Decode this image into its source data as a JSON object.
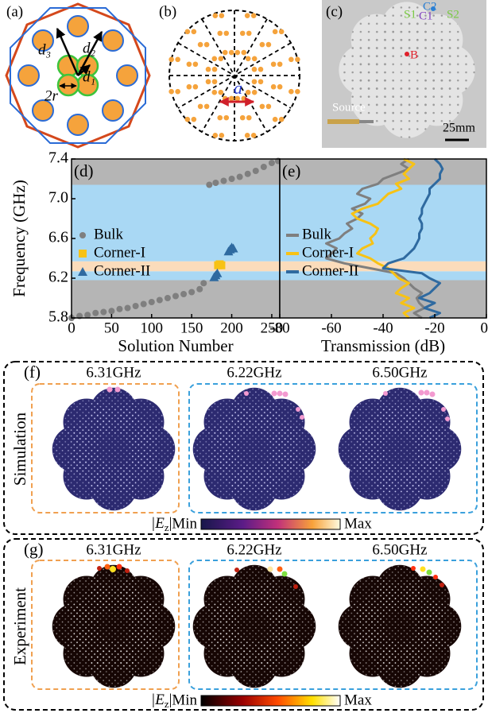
{
  "panel_a": {
    "label": "(a)",
    "d3": "d₃",
    "d2": "d₂",
    "d1": "d₁",
    "r": "2r"
  },
  "panel_b": {
    "label": "(b)",
    "a": "a"
  },
  "panel_c": {
    "label": "(c)",
    "C2": "C2",
    "C1": "C1",
    "S1": "S1",
    "S2": "S2",
    "B": "B",
    "source": "Source",
    "scale": "25mm"
  },
  "chart_data": [
    {
      "type": "scatter",
      "panel_label": "(d)",
      "xlabel": "Solution Number",
      "ylabel": "Frequency (GHz)",
      "xlim": [
        0,
        260
      ],
      "xticks": [
        0,
        50,
        100,
        150,
        200,
        250
      ],
      "ylim": [
        5.8,
        7.4
      ],
      "yticks": [
        5.8,
        6.2,
        6.6,
        {
          "value": 7,
          "label": "7.0"
        },
        7.4
      ],
      "legend": "center-left",
      "bands": [
        {
          "from": 5.8,
          "to": 6.18,
          "color": "#b5b5b5"
        },
        {
          "from": 6.18,
          "to": 6.27,
          "color": "#a9d8f4"
        },
        {
          "from": 6.27,
          "to": 6.37,
          "color": "#fbdcbb"
        },
        {
          "from": 6.37,
          "to": 7.14,
          "color": "#a9d8f4"
        },
        {
          "from": 7.14,
          "to": 7.4,
          "color": "#b5b5b5"
        }
      ],
      "series": [
        {
          "name": "Bulk",
          "color": "#7f7f7f",
          "marker": "circle",
          "x": [
            0,
            10,
            20,
            30,
            40,
            50,
            60,
            70,
            80,
            90,
            100,
            110,
            120,
            130,
            140,
            150,
            160,
            165,
            172,
            180,
            190,
            200,
            210,
            220,
            230,
            240,
            250,
            258
          ],
          "values": [
            5.8,
            5.82,
            5.83,
            5.85,
            5.86,
            5.87,
            5.89,
            5.9,
            5.92,
            5.94,
            5.96,
            5.98,
            6.0,
            6.02,
            6.04,
            6.06,
            6.09,
            6.15,
            7.14,
            7.16,
            7.18,
            7.2,
            7.22,
            7.25,
            7.28,
            7.32,
            7.36,
            7.38
          ]
        },
        {
          "name": "Corner-I",
          "color": "#f7c215",
          "marker": "square",
          "x": [
            183,
            185,
            187
          ],
          "values": [
            6.33,
            6.34,
            6.33
          ]
        },
        {
          "name": "Corner-II",
          "color": "#2f6aa0",
          "marker": "triangle",
          "x": [
            178,
            180,
            182,
            196,
            198,
            200,
            202
          ],
          "values": [
            6.21,
            6.23,
            6.25,
            6.47,
            6.49,
            6.51,
            6.5
          ]
        }
      ]
    },
    {
      "type": "line",
      "panel_label": "(e)",
      "xlabel": "Transmission (dB)",
      "xlim": [
        -80,
        0
      ],
      "xticks": [
        -80,
        -60,
        -40,
        -20,
        0
      ],
      "ylim": [
        5.8,
        7.4
      ],
      "legend": "center-left",
      "bands": [
        {
          "from": 5.8,
          "to": 6.18,
          "color": "#b5b5b5"
        },
        {
          "from": 6.18,
          "to": 6.27,
          "color": "#a9d8f4"
        },
        {
          "from": 6.27,
          "to": 6.37,
          "color": "#fbdcbb"
        },
        {
          "from": 6.37,
          "to": 7.14,
          "color": "#a9d8f4"
        },
        {
          "from": 7.14,
          "to": 7.4,
          "color": "#b5b5b5"
        }
      ],
      "y": [
        5.8,
        5.85,
        5.9,
        5.95,
        6.0,
        6.05,
        6.1,
        6.15,
        6.2,
        6.25,
        6.3,
        6.35,
        6.4,
        6.45,
        6.5,
        6.55,
        6.6,
        6.65,
        6.7,
        6.75,
        6.8,
        6.85,
        6.9,
        6.95,
        7.0,
        7.05,
        7.1,
        7.15,
        7.2,
        7.25,
        7.3,
        7.35,
        7.4
      ],
      "series": [
        {
          "name": "Bulk",
          "color": "#7f7f7f",
          "values": [
            -25,
            -28,
            -24,
            -26,
            -27,
            -25,
            -28,
            -30,
            -32,
            -35,
            -45,
            -55,
            -62,
            -60,
            -58,
            -62,
            -57,
            -55,
            -52,
            -54,
            -50,
            -48,
            -52,
            -47,
            -45,
            -50,
            -48,
            -42,
            -40,
            -35,
            -30,
            -33,
            -30
          ]
        },
        {
          "name": "Corner-I",
          "color": "#f7c215",
          "values": [
            -30,
            -32,
            -28,
            -33,
            -30,
            -35,
            -33,
            -30,
            -34,
            -36,
            -38,
            -42,
            -45,
            -50,
            -48,
            -44,
            -45,
            -43,
            -42,
            -45,
            -50,
            -52,
            -48,
            -42,
            -40,
            -38,
            -33,
            -35,
            -30,
            -32,
            -30,
            -28,
            -32
          ]
        },
        {
          "name": "Corner-II",
          "color": "#2f6aa0",
          "values": [
            -22,
            -18,
            -24,
            -20,
            -26,
            -22,
            -20,
            -18,
            -22,
            -25,
            -40,
            -38,
            -32,
            -30,
            -28,
            -27,
            -26,
            -26,
            -25,
            -25,
            -26,
            -25,
            -25,
            -24,
            -23,
            -22,
            -22,
            -20,
            -18,
            -18,
            -17,
            -18,
            -20
          ]
        }
      ]
    }
  ],
  "panel_f": {
    "label": "(f)",
    "row_label": "Simulation",
    "frequencies": [
      "6.31GHz",
      "6.22GHz",
      "6.50GHz"
    ],
    "colorbar": {
      "quantity_open": "|E",
      "quantity_sub": "z",
      "quantity_close": "|",
      "min": "Min",
      "max": "Max"
    }
  },
  "panel_g": {
    "label": "(g)",
    "row_label": "Experiment",
    "frequencies": [
      "6.31GHz",
      "6.22GHz",
      "6.50GHz"
    ],
    "colorbar": {
      "quantity_open": "|E",
      "quantity_sub": "z",
      "quantity_close": "|",
      "min": "Min",
      "max": "Max"
    }
  }
}
